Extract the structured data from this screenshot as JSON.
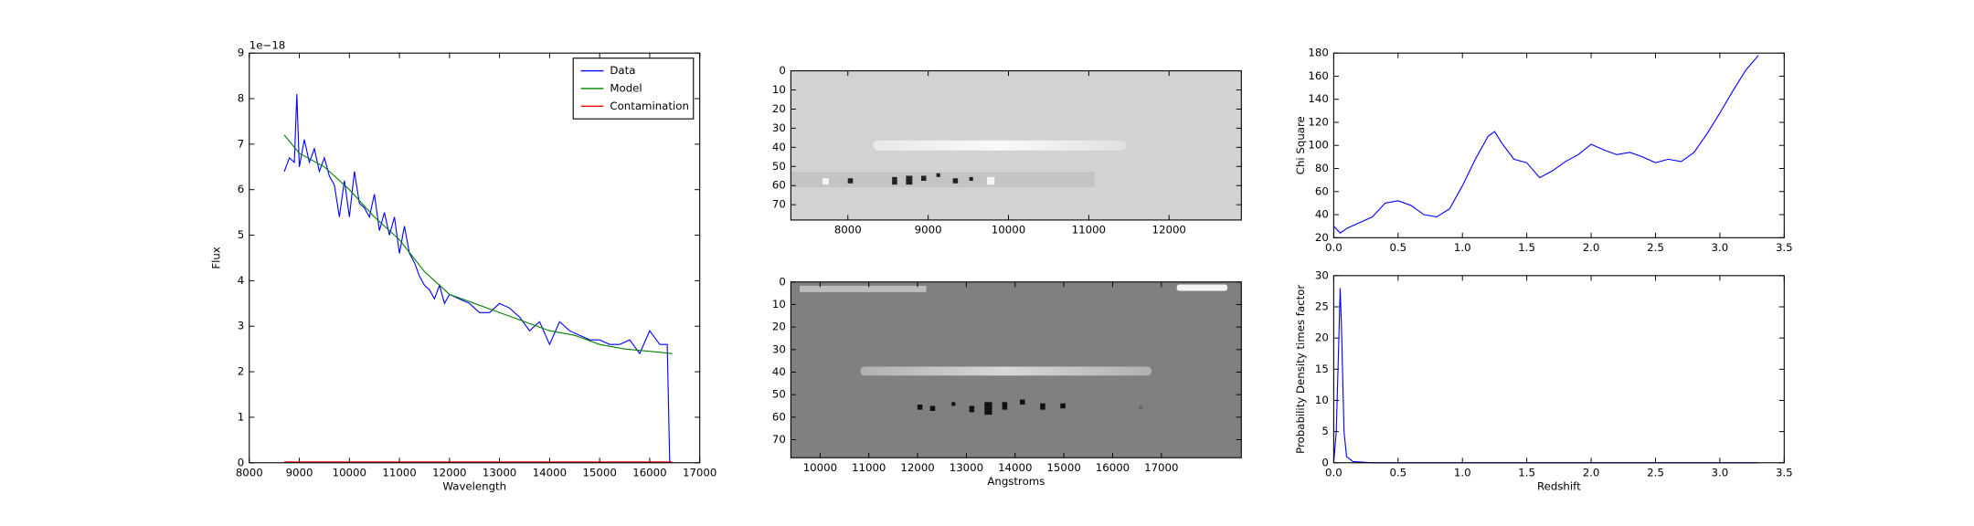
{
  "chart_data": [
    {
      "type": "line",
      "xlabel": "Wavelength",
      "ylabel": "Flux",
      "offset_text": "1e−18",
      "xlim": [
        8000,
        17000
      ],
      "ylim": [
        0,
        9
      ],
      "xticks": [
        8000,
        9000,
        10000,
        11000,
        12000,
        13000,
        14000,
        15000,
        16000,
        17000
      ],
      "yticks": [
        0,
        1,
        2,
        3,
        4,
        5,
        6,
        7,
        8,
        9
      ],
      "legend": "upper right",
      "series": [
        {
          "name": "Data",
          "color": "#0000ff",
          "x": [
            8700,
            8800,
            8900,
            8950,
            9000,
            9100,
            9200,
            9300,
            9400,
            9500,
            9600,
            9700,
            9800,
            9900,
            10000,
            10100,
            10200,
            10300,
            10400,
            10500,
            10600,
            10700,
            10800,
            10900,
            11000,
            11100,
            11200,
            11300,
            11400,
            11500,
            11600,
            11700,
            11800,
            11900,
            12000,
            12200,
            12400,
            12600,
            12800,
            13000,
            13200,
            13400,
            13600,
            13800,
            14000,
            14200,
            14400,
            14600,
            14800,
            15000,
            15200,
            15400,
            15600,
            15800,
            16000,
            16200,
            16350,
            16400
          ],
          "values": [
            6.4,
            6.7,
            6.6,
            8.1,
            6.5,
            7.1,
            6.6,
            6.9,
            6.4,
            6.7,
            6.3,
            6.1,
            5.4,
            6.2,
            5.4,
            6.4,
            5.7,
            5.6,
            5.4,
            5.9,
            5.1,
            5.5,
            5.0,
            5.4,
            4.6,
            5.2,
            4.6,
            4.4,
            4.1,
            3.9,
            3.8,
            3.6,
            3.9,
            3.5,
            3.7,
            3.6,
            3.5,
            3.3,
            3.3,
            3.5,
            3.4,
            3.2,
            2.9,
            3.1,
            2.6,
            3.1,
            2.9,
            2.8,
            2.7,
            2.7,
            2.6,
            2.6,
            2.7,
            2.4,
            2.9,
            2.6,
            2.6,
            0
          ]
        },
        {
          "name": "Model",
          "color": "#008000",
          "x": [
            8700,
            9000,
            9500,
            10000,
            10500,
            11000,
            11500,
            12000,
            12500,
            13000,
            13500,
            14000,
            14500,
            15000,
            15500,
            16000,
            16450
          ],
          "values": [
            7.2,
            6.8,
            6.5,
            6.0,
            5.4,
            4.9,
            4.2,
            3.7,
            3.5,
            3.3,
            3.1,
            2.9,
            2.8,
            2.6,
            2.5,
            2.45,
            2.4
          ]
        },
        {
          "name": "Contamination",
          "color": "#ff0000",
          "x": [
            8700,
            16450
          ],
          "values": [
            0.02,
            0.02
          ]
        }
      ]
    },
    {
      "type": "image",
      "xlim": [
        7290,
        12900
      ],
      "ylim": [
        78,
        0
      ],
      "xticks": [
        8000,
        9000,
        10000,
        11000,
        12000
      ],
      "yticks": [
        0,
        10,
        20,
        30,
        40,
        50,
        60,
        70
      ]
    },
    {
      "type": "image",
      "xlabel": "Angstroms",
      "xlim": [
        9400,
        18640
      ],
      "ylim": [
        78,
        0
      ],
      "xticks": [
        10000,
        11000,
        12000,
        13000,
        14000,
        15000,
        16000,
        17000
      ],
      "yticks": [
        0,
        10,
        20,
        30,
        40,
        50,
        60,
        70
      ]
    },
    {
      "type": "line",
      "ylabel": "Chi Square",
      "xlim": [
        0,
        3.5
      ],
      "ylim": [
        20,
        180
      ],
      "xticks": [
        {
          "value": 0,
          "label": "0.0"
        },
        0.5,
        {
          "value": 1,
          "label": "1.0"
        },
        1.5,
        {
          "value": 2,
          "label": "2.0"
        },
        2.5,
        {
          "value": 3,
          "label": "3.0"
        },
        3.5
      ],
      "yticks": [
        20,
        40,
        60,
        80,
        100,
        120,
        140,
        160,
        180
      ],
      "series": [
        {
          "color": "#0000ff",
          "x": [
            0,
            0.05,
            0.1,
            0.2,
            0.3,
            0.4,
            0.5,
            0.6,
            0.7,
            0.8,
            0.9,
            1.0,
            1.1,
            1.2,
            1.25,
            1.3,
            1.4,
            1.5,
            1.6,
            1.7,
            1.8,
            1.9,
            2.0,
            2.1,
            2.2,
            2.3,
            2.4,
            2.5,
            2.6,
            2.7,
            2.8,
            2.9,
            3.0,
            3.1,
            3.2,
            3.3
          ],
          "values": [
            30,
            24,
            28,
            33,
            38,
            50,
            52,
            48,
            40,
            38,
            45,
            65,
            88,
            108,
            112,
            103,
            88,
            85,
            72,
            78,
            86,
            92,
            101,
            96,
            92,
            94,
            90,
            85,
            88,
            86,
            94,
            110,
            128,
            147,
            165,
            178
          ]
        }
      ]
    },
    {
      "type": "line",
      "xlabel": "Redshift",
      "ylabel": "Probability Density times factor",
      "xlim": [
        0,
        3.5
      ],
      "ylim": [
        0,
        30
      ],
      "xticks": [
        {
          "value": 0,
          "label": "0.0"
        },
        0.5,
        {
          "value": 1,
          "label": "1.0"
        },
        1.5,
        {
          "value": 2,
          "label": "2.0"
        },
        2.5,
        {
          "value": 3,
          "label": "3.0"
        },
        3.5
      ],
      "yticks": [
        0,
        5,
        10,
        15,
        20,
        25,
        30
      ],
      "series": [
        {
          "color": "#0000ff",
          "x": [
            0,
            0.02,
            0.04,
            0.05,
            0.06,
            0.08,
            0.1,
            0.15,
            0.3,
            1.0,
            3.3
          ],
          "values": [
            0,
            5,
            20,
            28,
            22,
            5,
            1,
            0.2,
            0,
            0,
            0
          ]
        }
      ]
    }
  ]
}
